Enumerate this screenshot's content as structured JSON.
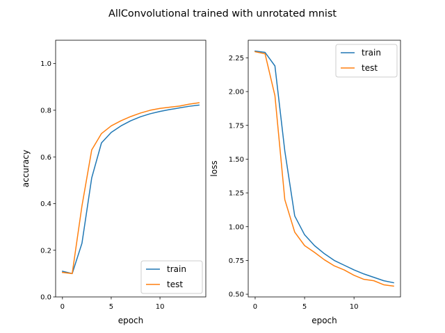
{
  "figure": {
    "title": "AllConvolutional trained with unrotated mnist"
  },
  "colors": {
    "train": "#1f77b4",
    "test": "#ff7f0e"
  },
  "chart_data": [
    {
      "type": "line",
      "xlabel": "epoch",
      "ylabel": "accuracy",
      "xlim": [
        -0.7,
        14.7
      ],
      "ylim": [
        0.0,
        1.1
      ],
      "xticks": [
        0,
        5,
        10
      ],
      "yticks": [
        0.0,
        0.2,
        0.4,
        0.6,
        0.8,
        1.0
      ],
      "ytick_labels": [
        "0.0",
        "0.2",
        "0.4",
        "0.6",
        "0.8",
        "1.0"
      ],
      "legend": "lower right",
      "grid": false,
      "x": [
        0,
        1,
        2,
        3,
        4,
        5,
        6,
        7,
        8,
        9,
        10,
        11,
        12,
        13,
        14
      ],
      "series": [
        {
          "name": "train",
          "values": [
            0.11,
            0.1,
            0.23,
            0.51,
            0.66,
            0.705,
            0.733,
            0.755,
            0.772,
            0.785,
            0.795,
            0.803,
            0.81,
            0.817,
            0.822
          ]
        },
        {
          "name": "test",
          "values": [
            0.105,
            0.1,
            0.39,
            0.63,
            0.7,
            0.733,
            0.755,
            0.773,
            0.788,
            0.8,
            0.808,
            0.813,
            0.818,
            0.826,
            0.832
          ]
        }
      ]
    },
    {
      "type": "line",
      "xlabel": "epoch",
      "ylabel": "loss",
      "xlim": [
        -0.7,
        14.7
      ],
      "ylim": [
        0.48,
        2.38
      ],
      "xticks": [
        0,
        5,
        10
      ],
      "yticks": [
        0.5,
        0.75,
        1.0,
        1.25,
        1.5,
        1.75,
        2.0,
        2.25
      ],
      "ytick_labels": [
        "0.50",
        "0.75",
        "1.00",
        "1.25",
        "1.50",
        "1.75",
        "2.00",
        "2.25"
      ],
      "legend": "upper right",
      "grid": false,
      "x": [
        0,
        1,
        2,
        3,
        4,
        5,
        6,
        7,
        8,
        9,
        10,
        11,
        12,
        13,
        14
      ],
      "series": [
        {
          "name": "train",
          "values": [
            2.3,
            2.29,
            2.19,
            1.56,
            1.08,
            0.94,
            0.86,
            0.8,
            0.75,
            0.715,
            0.68,
            0.65,
            0.625,
            0.6,
            0.585
          ]
        },
        {
          "name": "test",
          "values": [
            2.295,
            2.28,
            1.97,
            1.2,
            0.96,
            0.86,
            0.81,
            0.755,
            0.71,
            0.68,
            0.64,
            0.61,
            0.6,
            0.57,
            0.56
          ]
        }
      ]
    }
  ]
}
